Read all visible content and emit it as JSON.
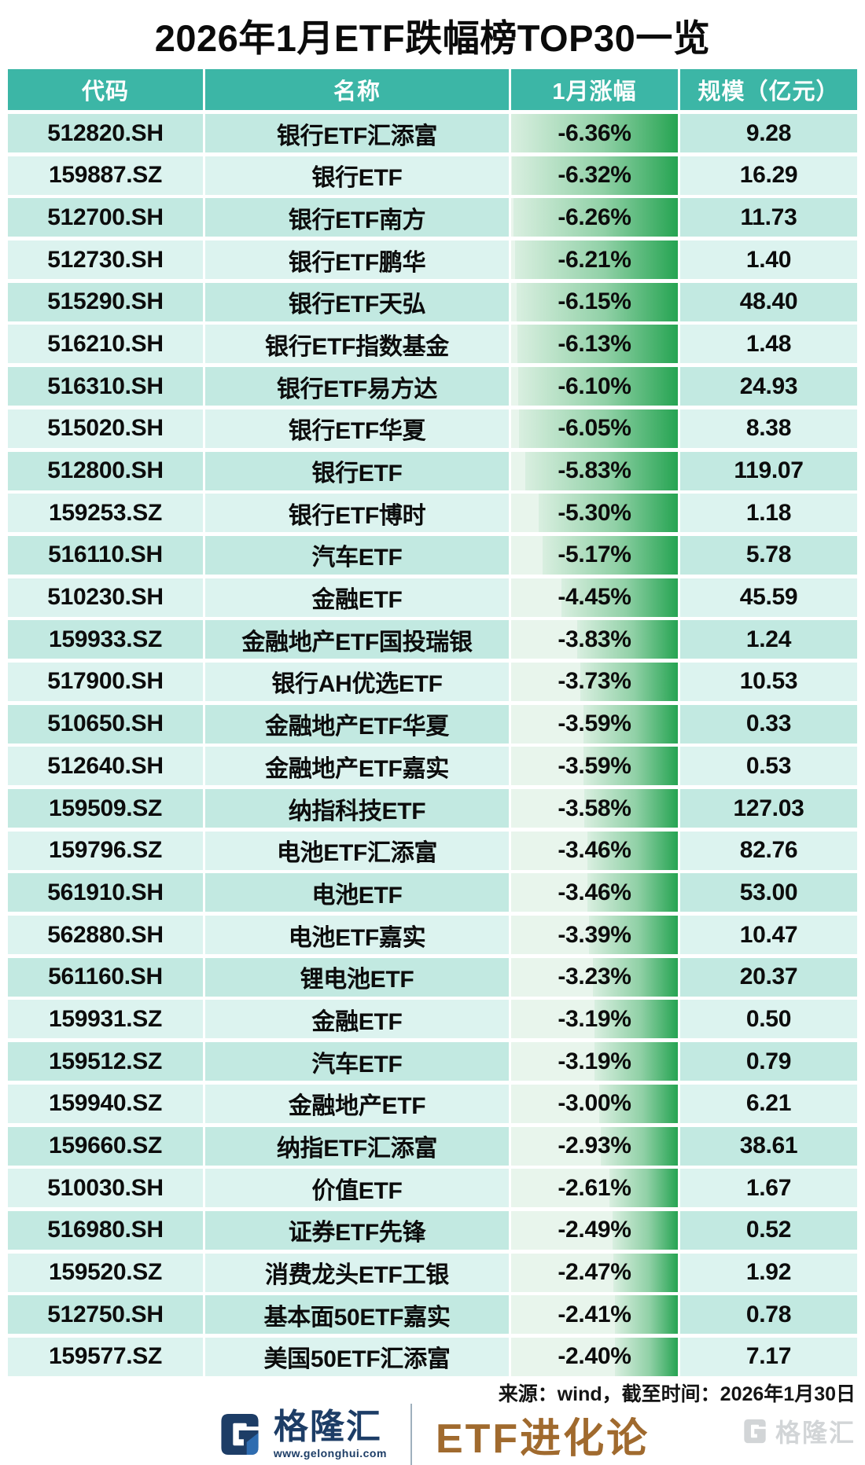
{
  "title": "2026年1月ETF跌幅榜TOP30一览",
  "chart_data": {
    "type": "table",
    "title": "2026年1月ETF跌幅榜TOP30一览",
    "columns": [
      "代码",
      "名称",
      "1月涨幅",
      "规模（亿元）"
    ],
    "bar_max_abs_pct": 6.36,
    "bar_color": "#26a452",
    "rows": [
      {
        "code": "512820.SH",
        "name": "银行ETF汇添富",
        "change": "-6.36%",
        "change_pct": -6.36,
        "scale": "9.28"
      },
      {
        "code": "159887.SZ",
        "name": "银行ETF",
        "change": "-6.32%",
        "change_pct": -6.32,
        "scale": "16.29"
      },
      {
        "code": "512700.SH",
        "name": "银行ETF南方",
        "change": "-6.26%",
        "change_pct": -6.26,
        "scale": "11.73"
      },
      {
        "code": "512730.SH",
        "name": "银行ETF鹏华",
        "change": "-6.21%",
        "change_pct": -6.21,
        "scale": "1.40"
      },
      {
        "code": "515290.SH",
        "name": "银行ETF天弘",
        "change": "-6.15%",
        "change_pct": -6.15,
        "scale": "48.40"
      },
      {
        "code": "516210.SH",
        "name": "银行ETF指数基金",
        "change": "-6.13%",
        "change_pct": -6.13,
        "scale": "1.48"
      },
      {
        "code": "516310.SH",
        "name": "银行ETF易方达",
        "change": "-6.10%",
        "change_pct": -6.1,
        "scale": "24.93"
      },
      {
        "code": "515020.SH",
        "name": "银行ETF华夏",
        "change": "-6.05%",
        "change_pct": -6.05,
        "scale": "8.38"
      },
      {
        "code": "512800.SH",
        "name": "银行ETF",
        "change": "-5.83%",
        "change_pct": -5.83,
        "scale": "119.07"
      },
      {
        "code": "159253.SZ",
        "name": "银行ETF博时",
        "change": "-5.30%",
        "change_pct": -5.3,
        "scale": "1.18"
      },
      {
        "code": "516110.SH",
        "name": "汽车ETF",
        "change": "-5.17%",
        "change_pct": -5.17,
        "scale": "5.78"
      },
      {
        "code": "510230.SH",
        "name": "金融ETF",
        "change": "-4.45%",
        "change_pct": -4.45,
        "scale": "45.59"
      },
      {
        "code": "159933.SZ",
        "name": "金融地产ETF国投瑞银",
        "change": "-3.83%",
        "change_pct": -3.83,
        "scale": "1.24"
      },
      {
        "code": "517900.SH",
        "name": "银行AH优选ETF",
        "change": "-3.73%",
        "change_pct": -3.73,
        "scale": "10.53"
      },
      {
        "code": "510650.SH",
        "name": "金融地产ETF华夏",
        "change": "-3.59%",
        "change_pct": -3.59,
        "scale": "0.33"
      },
      {
        "code": "512640.SH",
        "name": "金融地产ETF嘉实",
        "change": "-3.59%",
        "change_pct": -3.59,
        "scale": "0.53"
      },
      {
        "code": "159509.SZ",
        "name": "纳指科技ETF",
        "change": "-3.58%",
        "change_pct": -3.58,
        "scale": "127.03"
      },
      {
        "code": "159796.SZ",
        "name": "电池ETF汇添富",
        "change": "-3.46%",
        "change_pct": -3.46,
        "scale": "82.76"
      },
      {
        "code": "561910.SH",
        "name": "电池ETF",
        "change": "-3.46%",
        "change_pct": -3.46,
        "scale": "53.00"
      },
      {
        "code": "562880.SH",
        "name": "电池ETF嘉实",
        "change": "-3.39%",
        "change_pct": -3.39,
        "scale": "10.47"
      },
      {
        "code": "561160.SH",
        "name": "锂电池ETF",
        "change": "-3.23%",
        "change_pct": -3.23,
        "scale": "20.37"
      },
      {
        "code": "159931.SZ",
        "name": "金融ETF",
        "change": "-3.19%",
        "change_pct": -3.19,
        "scale": "0.50"
      },
      {
        "code": "159512.SZ",
        "name": "汽车ETF",
        "change": "-3.19%",
        "change_pct": -3.19,
        "scale": "0.79"
      },
      {
        "code": "159940.SZ",
        "name": "金融地产ETF",
        "change": "-3.00%",
        "change_pct": -3.0,
        "scale": "6.21"
      },
      {
        "code": "159660.SZ",
        "name": "纳指ETF汇添富",
        "change": "-2.93%",
        "change_pct": -2.93,
        "scale": "38.61"
      },
      {
        "code": "510030.SH",
        "name": "价值ETF",
        "change": "-2.61%",
        "change_pct": -2.61,
        "scale": "1.67"
      },
      {
        "code": "516980.SH",
        "name": "证券ETF先锋",
        "change": "-2.49%",
        "change_pct": -2.49,
        "scale": "0.52"
      },
      {
        "code": "159520.SZ",
        "name": "消费龙头ETF工银",
        "change": "-2.47%",
        "change_pct": -2.47,
        "scale": "1.92"
      },
      {
        "code": "512750.SH",
        "name": "基本面50ETF嘉实",
        "change": "-2.41%",
        "change_pct": -2.41,
        "scale": "0.78"
      },
      {
        "code": "159577.SZ",
        "name": "美国50ETF汇添富",
        "change": "-2.40%",
        "change_pct": -2.4,
        "scale": "7.17"
      }
    ]
  },
  "source_note": "来源：wind，截至时间：2026年1月30日",
  "footer": {
    "brand_name": "格隆汇",
    "brand_url": "www.gelonghui.com",
    "column_name": "ETF进化论",
    "watermark": "格隆汇"
  },
  "colors": {
    "header_bg": "#3cb6a6",
    "row_dark": "#c2e9e1",
    "row_light": "#dcf3ef",
    "bar_green": "#26a452",
    "brand_navy": "#1d3d66",
    "column_brown": "#a06a2e"
  }
}
